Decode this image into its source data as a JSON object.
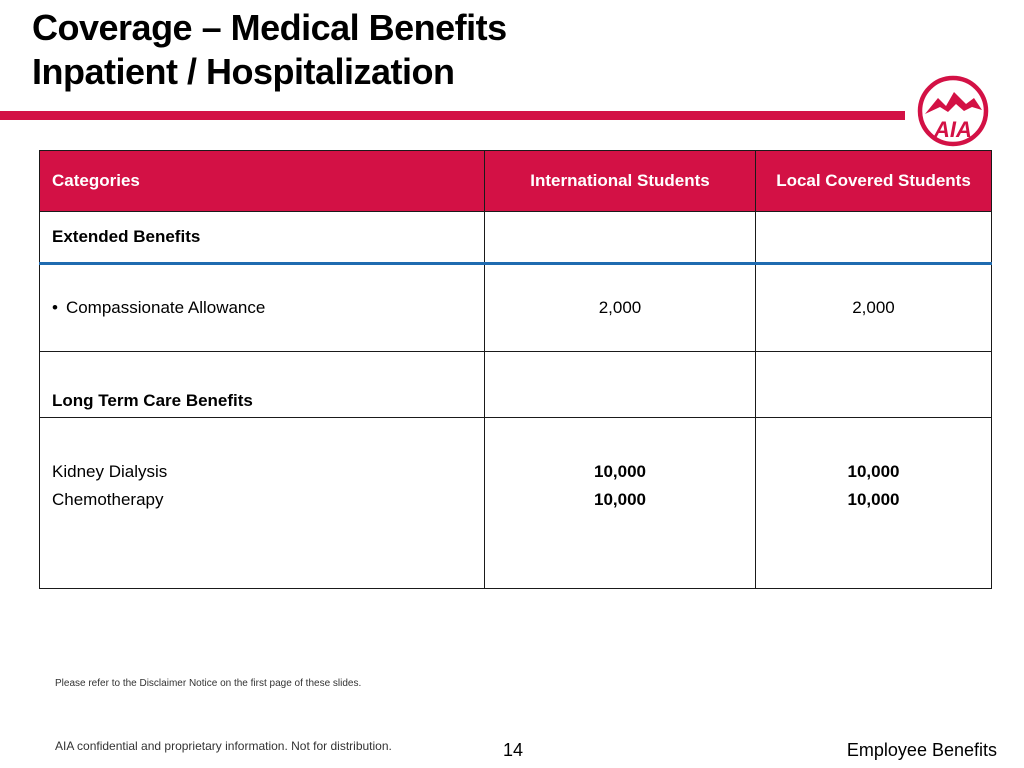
{
  "title": {
    "line1": "Coverage – Medical Benefits",
    "line2": "Inpatient / Hospitalization"
  },
  "logo": {
    "text": "AIA",
    "icon": "aia-logo-icon",
    "color": "#d31145"
  },
  "table": {
    "headers": [
      "Categories",
      "International Students",
      "Local  Covered Students"
    ],
    "rows": {
      "extended": {
        "label": "Extended Benefits"
      },
      "compassionate": {
        "label": "Compassionate Allowance",
        "intl": "2,000",
        "local": "2,000"
      },
      "long_term": {
        "label": "Long Term Care Benefits"
      },
      "items": [
        {
          "label": "Kidney Dialysis",
          "intl": "10,000",
          "local": "10,000"
        },
        {
          "label": "Chemotherapy",
          "intl": "10,000",
          "local": "10,000"
        }
      ]
    }
  },
  "disclaimer": "Please refer to the Disclaimer Notice on the first page of these slides.",
  "footer": {
    "confidential": "AIA confidential and proprietary information. Not for distribution.",
    "page_number": "14",
    "section": "Employee Benefits"
  },
  "colors": {
    "accent": "#d31145",
    "divider": "#1f6bb0"
  }
}
